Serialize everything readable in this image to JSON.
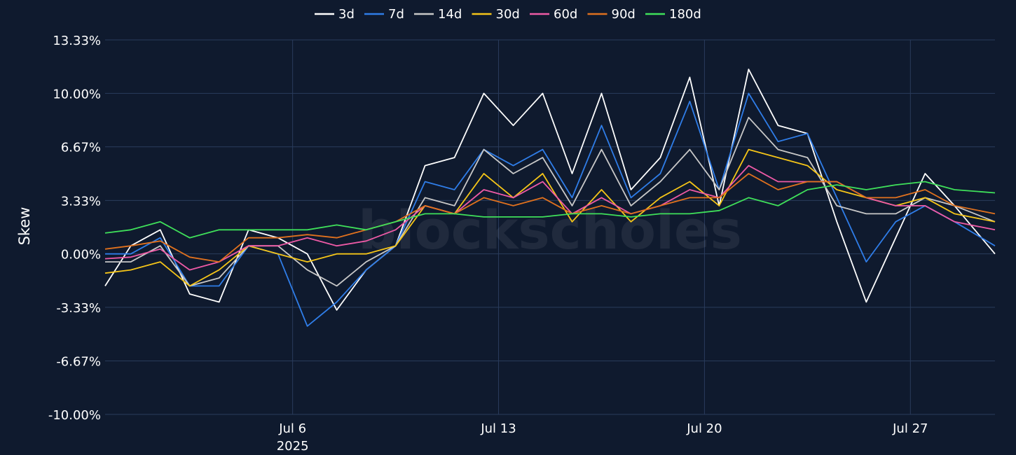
{
  "watermark": "blockscholes",
  "chart_data": {
    "type": "line",
    "ylabel": "Skew",
    "yticks": [
      "13.33%",
      "10.00%",
      "6.67%",
      "3.33%",
      "0.00%",
      "-3.33%",
      "-6.67%",
      "-10.00%"
    ],
    "ylim": [
      -10.0,
      13.33
    ],
    "xlim": [
      "2025-06-29 15:00",
      "2025-07-29 21:00"
    ],
    "xticks": [
      {
        "date": "2025-07-06",
        "label": "Jul 6",
        "sublabel": "2025"
      },
      {
        "date": "2025-07-13",
        "label": "Jul 13",
        "sublabel": ""
      },
      {
        "date": "2025-07-20",
        "label": "Jul 20",
        "sublabel": ""
      },
      {
        "date": "2025-07-27",
        "label": "Jul 27",
        "sublabel": ""
      }
    ],
    "grid": true,
    "legend_position": "top-center",
    "x": [
      "2025-06-29 15:00",
      "2025-06-30 12:00",
      "2025-07-01 12:00",
      "2025-07-02 12:00",
      "2025-07-03 12:00",
      "2025-07-04 12:00",
      "2025-07-05 12:00",
      "2025-07-06 12:00",
      "2025-07-07 12:00",
      "2025-07-08 12:00",
      "2025-07-09 12:00",
      "2025-07-10 12:00",
      "2025-07-11 12:00",
      "2025-07-12 12:00",
      "2025-07-13 12:00",
      "2025-07-14 12:00",
      "2025-07-15 12:00",
      "2025-07-16 12:00",
      "2025-07-17 12:00",
      "2025-07-18 12:00",
      "2025-07-19 12:00",
      "2025-07-20 12:00",
      "2025-07-21 12:00",
      "2025-07-22 12:00",
      "2025-07-23 12:00",
      "2025-07-24 12:00",
      "2025-07-25 12:00",
      "2025-07-26 12:00",
      "2025-07-27 12:00",
      "2025-07-28 12:00",
      "2025-07-29 21:00"
    ],
    "series": [
      {
        "name": "3d",
        "color": "#ffffff",
        "values": [
          -2.0,
          0.5,
          1.5,
          -2.5,
          -3.0,
          1.5,
          1.0,
          0.0,
          -3.5,
          -1.0,
          0.5,
          5.5,
          6.0,
          10.0,
          8.0,
          10.0,
          5.0,
          10.0,
          4.0,
          6.0,
          11.0,
          3.0,
          11.5,
          8.0,
          7.5,
          2.0,
          -3.0,
          1.0,
          5.0,
          3.0,
          0.0
        ]
      },
      {
        "name": "7d",
        "color": "#2f7de8",
        "values": [
          0.0,
          0.0,
          1.0,
          -2.0,
          -2.0,
          0.5,
          0.0,
          -4.5,
          -3.0,
          -1.0,
          0.5,
          4.5,
          4.0,
          6.5,
          5.5,
          6.5,
          3.5,
          8.0,
          3.5,
          5.0,
          9.5,
          4.0,
          10.0,
          7.0,
          7.5,
          3.5,
          -0.5,
          2.0,
          3.0,
          2.0,
          0.5
        ]
      },
      {
        "name": "14d",
        "color": "#c8c8c8",
        "values": [
          -0.5,
          -0.5,
          0.5,
          -2.0,
          -1.5,
          0.5,
          0.5,
          -1.0,
          -2.0,
          -0.5,
          0.5,
          3.5,
          3.0,
          6.5,
          5.0,
          6.0,
          3.0,
          6.5,
          3.0,
          4.5,
          6.5,
          4.0,
          8.5,
          6.5,
          6.0,
          3.0,
          2.5,
          2.5,
          3.5,
          3.0,
          2.0
        ]
      },
      {
        "name": "30d",
        "color": "#f5c518",
        "values": [
          -1.2,
          -1.0,
          -0.5,
          -2.0,
          -1.0,
          0.5,
          0.0,
          -0.5,
          0.0,
          0.0,
          0.5,
          3.0,
          2.5,
          5.0,
          3.5,
          5.0,
          2.0,
          4.0,
          2.0,
          3.5,
          4.5,
          3.0,
          6.5,
          6.0,
          5.5,
          4.0,
          3.5,
          3.0,
          3.5,
          2.5,
          2.0
        ]
      },
      {
        "name": "60d",
        "color": "#ee5aa6",
        "values": [
          -0.3,
          -0.2,
          0.3,
          -1.0,
          -0.5,
          0.5,
          0.5,
          1.0,
          0.5,
          0.8,
          1.5,
          3.0,
          2.5,
          4.0,
          3.5,
          4.5,
          2.5,
          3.5,
          2.5,
          3.0,
          4.0,
          3.5,
          5.5,
          4.5,
          4.5,
          4.5,
          3.5,
          3.0,
          3.0,
          2.0,
          1.5
        ]
      },
      {
        "name": "90d",
        "color": "#e0711e",
        "values": [
          0.3,
          0.5,
          0.8,
          -0.2,
          -0.5,
          1.0,
          1.0,
          1.2,
          1.0,
          1.5,
          2.0,
          3.0,
          2.5,
          3.5,
          3.0,
          3.5,
          2.5,
          3.0,
          2.5,
          3.0,
          3.5,
          3.5,
          5.0,
          4.0,
          4.5,
          4.5,
          3.5,
          3.5,
          4.0,
          3.0,
          2.5
        ]
      },
      {
        "name": "180d",
        "color": "#3fe05a",
        "values": [
          1.3,
          1.5,
          2.0,
          1.0,
          1.5,
          1.5,
          1.5,
          1.5,
          1.8,
          1.5,
          2.0,
          2.5,
          2.5,
          2.3,
          2.3,
          2.3,
          2.5,
          2.5,
          2.3,
          2.5,
          2.5,
          2.7,
          3.5,
          3.0,
          4.0,
          4.3,
          4.0,
          4.3,
          4.5,
          4.0,
          3.8
        ]
      }
    ]
  }
}
